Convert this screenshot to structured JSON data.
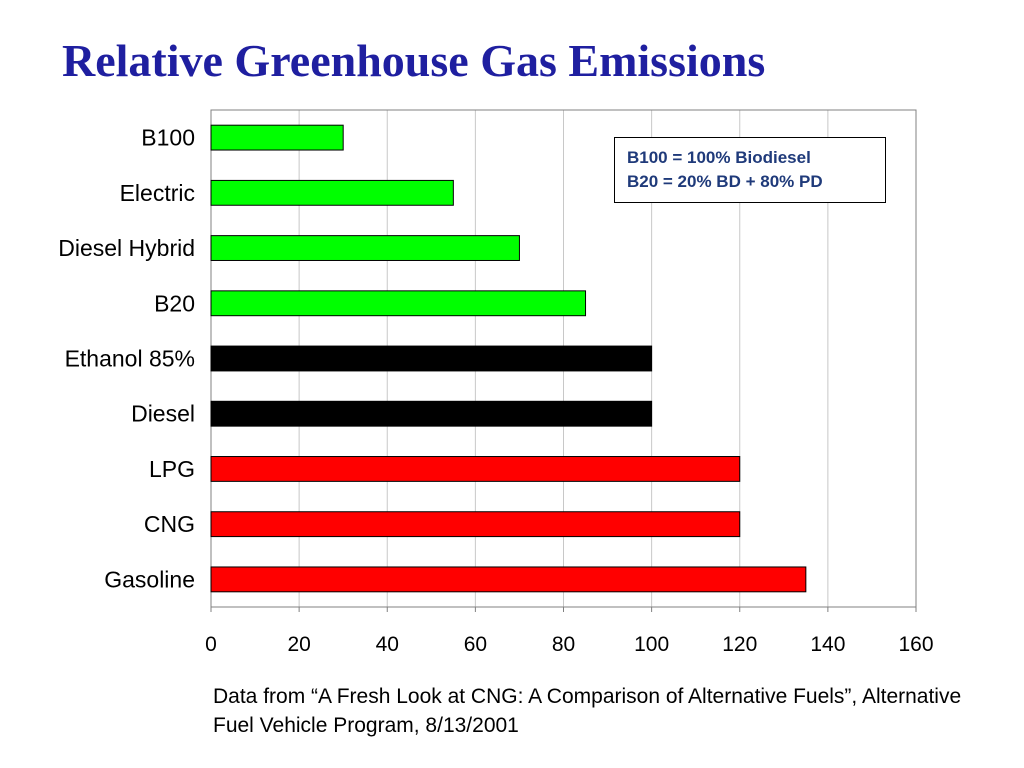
{
  "chart_data": {
    "type": "bar",
    "orientation": "horizontal",
    "title": "Relative Greenhouse Gas Emissions",
    "categories": [
      "B100",
      "Electric",
      "Diesel Hybrid",
      "B20",
      "Ethanol 85%",
      "Diesel",
      "LPG",
      "CNG",
      "Gasoline"
    ],
    "values": [
      30,
      55,
      70,
      85,
      100,
      100,
      120,
      120,
      135
    ],
    "bar_colors": [
      "#00ff00",
      "#00ff00",
      "#00ff00",
      "#00ff00",
      "#000000",
      "#000000",
      "#ff0000",
      "#ff0000",
      "#ff0000"
    ],
    "xlim": [
      0,
      160
    ],
    "xticks": [
      0,
      20,
      40,
      60,
      80,
      100,
      120,
      140,
      160
    ],
    "grid": "vertical",
    "xlabel": "",
    "ylabel": ""
  },
  "note": {
    "line1": "B100 = 100% Biodiesel",
    "line2": "B20 = 20% BD + 80% PD"
  },
  "source": "Data from “A Fresh Look at CNG: A Comparison of Alternative Fuels”, Alternative Fuel Vehicle Program, 8/13/2001",
  "colors": {
    "title": "#1f1fa0",
    "note_text": "#1f3a7a",
    "low_emission": "#00ff00",
    "baseline": "#000000",
    "high_emission": "#ff0000"
  }
}
